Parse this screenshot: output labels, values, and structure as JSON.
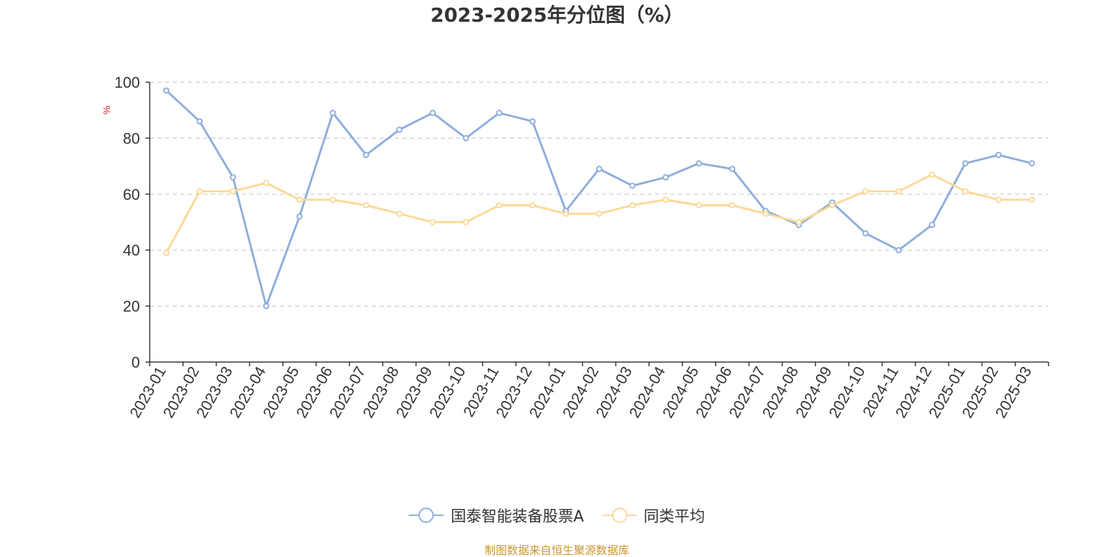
{
  "chart_data": {
    "type": "line",
    "title": "2023-2025年分位图（%）",
    "ylabel": "%",
    "xlabel": "",
    "ylim": [
      0,
      100
    ],
    "yticks": [
      0,
      20,
      40,
      60,
      80,
      100
    ],
    "grid": "horizontal-dashed",
    "legend_position": "bottom-center",
    "categories": [
      "2023-01",
      "2023-02",
      "2023-03",
      "2023-04",
      "2023-05",
      "2023-06",
      "2023-07",
      "2023-08",
      "2023-09",
      "2023-10",
      "2023-11",
      "2023-12",
      "2024-01",
      "2024-02",
      "2024-03",
      "2024-04",
      "2024-05",
      "2024-06",
      "2024-07",
      "2024-08",
      "2024-09",
      "2024-10",
      "2024-11",
      "2024-12",
      "2025-01",
      "2025-02",
      "2025-03"
    ],
    "series": [
      {
        "name": "国泰智能装备股票A",
        "color": "#8eaedb",
        "values": [
          97,
          86,
          66,
          20,
          52,
          89,
          74,
          83,
          89,
          80,
          89,
          86,
          54,
          69,
          63,
          66,
          71,
          69,
          54,
          49,
          57,
          46,
          40,
          49,
          71,
          74,
          71
        ]
      },
      {
        "name": "同类平均",
        "color": "#fcd899",
        "values": [
          39,
          61,
          61,
          64,
          58,
          58,
          56,
          53,
          50,
          50,
          56,
          56,
          53,
          53,
          56,
          58,
          56,
          56,
          53,
          50,
          56,
          61,
          61,
          67,
          61,
          58,
          58
        ]
      }
    ]
  },
  "source_note": "制图数据来自恒生聚源数据库"
}
